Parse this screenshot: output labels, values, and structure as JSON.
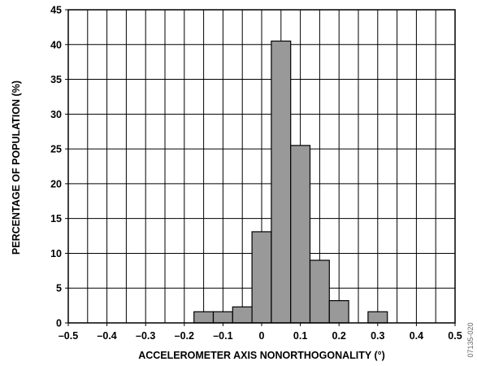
{
  "chart_data": {
    "type": "bar",
    "title": "",
    "xlabel": "ACCELEROMETER AXIS NONORTHOGONALITY (°)",
    "ylabel": "PERCENTAGE OF POPULATION (%)",
    "xlim": [
      -0.5,
      0.5
    ],
    "ylim": [
      0,
      45
    ],
    "grid": true,
    "bin_width": 0.05,
    "x_ticks": [
      -0.5,
      -0.4,
      -0.3,
      -0.2,
      -0.1,
      0,
      0.1,
      0.2,
      0.3,
      0.4,
      0.5
    ],
    "x_tick_labels": [
      "–0.5",
      "–0.4",
      "–0.3",
      "–0.2",
      "–0.1",
      "0",
      "0.1",
      "0.2",
      "0.3",
      "0.4",
      "0.5"
    ],
    "y_ticks": [
      0,
      5,
      10,
      15,
      20,
      25,
      30,
      35,
      40,
      45
    ],
    "y_tick_labels": [
      "0",
      "5",
      "10",
      "15",
      "20",
      "25",
      "30",
      "35",
      "40",
      "45"
    ],
    "bins": [
      {
        "x0": -0.175,
        "x1": -0.125,
        "value": 1.6
      },
      {
        "x0": -0.125,
        "x1": -0.075,
        "value": 1.6
      },
      {
        "x0": -0.075,
        "x1": -0.025,
        "value": 2.3
      },
      {
        "x0": -0.025,
        "x1": 0.025,
        "value": 13.1
      },
      {
        "x0": 0.025,
        "x1": 0.075,
        "value": 40.5
      },
      {
        "x0": 0.075,
        "x1": 0.125,
        "value": 25.5
      },
      {
        "x0": 0.125,
        "x1": 0.175,
        "value": 9.0
      },
      {
        "x0": 0.175,
        "x1": 0.225,
        "value": 3.2
      },
      {
        "x0": 0.275,
        "x1": 0.325,
        "value": 1.6
      }
    ],
    "bar_color": "#999999",
    "code": "07135-020"
  }
}
